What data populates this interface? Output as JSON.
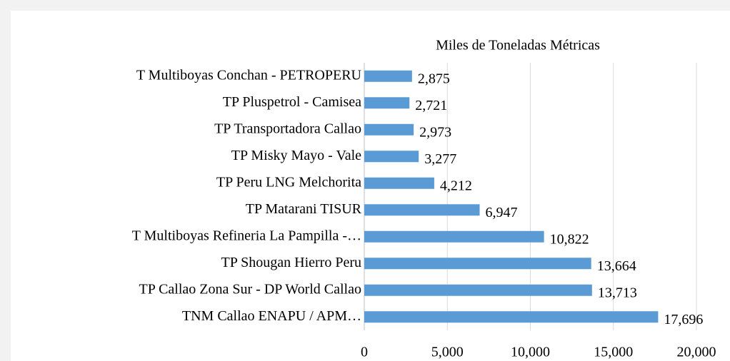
{
  "chart_data": {
    "type": "bar",
    "orientation": "horizontal",
    "title": "Miles de Toneladas Métricas",
    "categories": [
      "T Multiboyas Conchan - PETROPERU",
      "TP Pluspetrol - Camisea",
      "TP Transportadora Callao",
      "TP Misky Mayo - Vale",
      "TP Peru LNG Melchorita",
      "TP Matarani TISUR",
      "T Multiboyas Refineria La Pampilla -…",
      "TP Shougan Hierro Peru",
      "TP Callao Zona Sur - DP World Callao",
      "TNM Callao ENAPU / APM…"
    ],
    "values": [
      2875,
      2721,
      2973,
      3277,
      4212,
      6947,
      10822,
      13664,
      13713,
      17696
    ],
    "value_labels": [
      "2,875",
      "2,721",
      "2,973",
      "3,277",
      "4,212",
      "6,947",
      "10,822",
      "13,664",
      "13,713",
      "17,696"
    ],
    "color": "#5b9bd5",
    "xlim": [
      0,
      20000
    ],
    "xticks": [
      0,
      {
        "value": 5000,
        "label": "5,000"
      },
      {
        "value": 10000,
        "label": "10,000"
      },
      {
        "value": 15000,
        "label": "15,000"
      },
      {
        "value": 20000,
        "label": "20,000"
      }
    ],
    "grid": true
  }
}
